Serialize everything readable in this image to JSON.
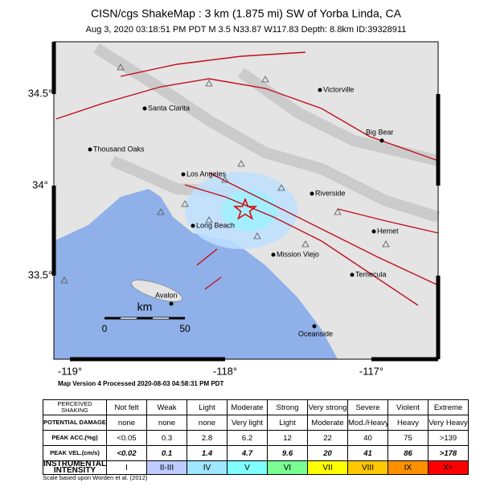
{
  "header": {
    "title": "CISN/cgs ShakeMap : 3 km (1.875 mi) SW of Yorba Linda, CA",
    "subtitle": "Aug  3, 2020 03:18:51 PM PDT   M 3.5   N33.87 W117.83   Depth: 8.8km   ID:39328911"
  },
  "map": {
    "lat_labels": [
      "34.5°",
      "34°",
      "33.5°"
    ],
    "lon_labels": [
      "-119°",
      "-118°",
      "-117°"
    ],
    "cities": [
      "Victorville",
      "Santa Clarita",
      "Big Bear",
      "Thousand Oaks",
      "Los Angeles",
      "Riverside",
      "Long Beach",
      "Hemet",
      "Mission Viejo",
      "Temecula",
      "Avalon",
      "Oceanside"
    ],
    "scale": {
      "unit": "km",
      "labels": [
        "0",
        "50"
      ]
    },
    "footnote": "Map Version 4 Processed 2020-08-03 04:58:31 PM PDT"
  },
  "table": {
    "rows": [
      {
        "header": "PERCEIVED SHAKING",
        "cells": [
          "Not felt",
          "Weak",
          "Light",
          "Moderate",
          "Strong",
          "Very strong",
          "Severe",
          "Violent",
          "Extreme"
        ]
      },
      {
        "header": "POTENTIAL DAMAGE",
        "cells": [
          "none",
          "none",
          "none",
          "Very light",
          "Light",
          "Moderate",
          "Mod./Heavy",
          "Heavy",
          "Very Heavy"
        ]
      },
      {
        "header": "PEAK ACC.(%g)",
        "cells": [
          "<0.05",
          "0.3",
          "2.8",
          "6.2",
          "12",
          "22",
          "40",
          "75",
          ">139"
        ]
      },
      {
        "header": "PEAK VEL.(cm/s)",
        "cells": [
          "<0.02",
          "0.1",
          "1.4",
          "4.7",
          "9.6",
          "20",
          "41",
          "86",
          ">178"
        ]
      },
      {
        "header": "INSTRUMENTAL INTENSITY",
        "cells": [
          "I",
          "II-III",
          "IV",
          "V",
          "VI",
          "VII",
          "VIII",
          "IX",
          "X+"
        ]
      }
    ],
    "credit": "Scale based upon Worden et al. (2012)"
  }
}
